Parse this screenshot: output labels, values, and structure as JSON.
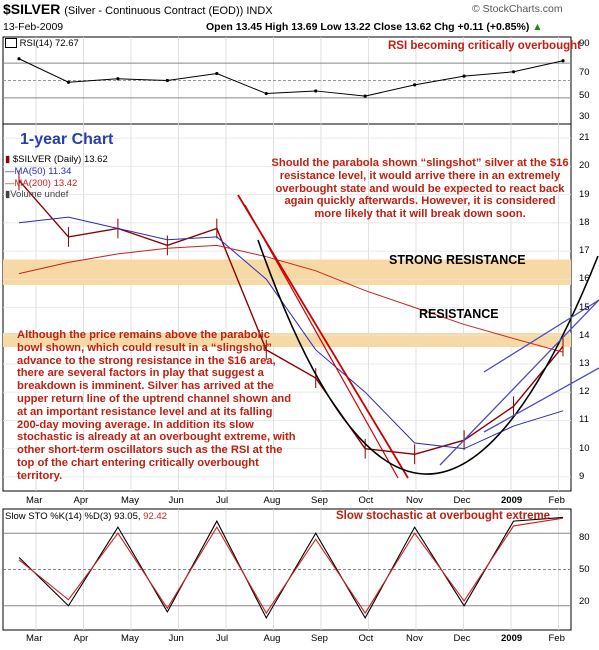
{
  "header": {
    "symbol": "$SILVER",
    "description": "(Silver - Continuous Contract (EOD)) INDX",
    "watermark": "© StockCharts.com",
    "date": "13-Feb-2009",
    "ohlc": "Open 13.45  High 13.69  Low 13.22  Close 13.62  Chg +0.11 (+0.85%)",
    "change_arrow": "▲"
  },
  "rsi_panel": {
    "label": "RSI(14) 72.67",
    "annotation": "RSI becoming critically overbought",
    "yticks": [
      "70",
      "50",
      "30"
    ],
    "top_tick": "90"
  },
  "price_panel": {
    "title_badge": "1-year Chart",
    "legend": {
      "main": "$SILVER (Daily) 13.62",
      "ma50": "MA(50) 11.34",
      "ma200": "MA(200) 13.42",
      "volume": "Volume undef"
    },
    "yticks": [
      "21",
      "20",
      "19",
      "18",
      "17",
      "16",
      "15",
      "14",
      "13",
      "12",
      "11",
      "10",
      "9"
    ],
    "xticks": [
      "Mar",
      "Apr",
      "May",
      "Jun",
      "Jul",
      "Aug",
      "Sep",
      "Oct",
      "Nov",
      "Dec",
      "2009",
      "Feb"
    ],
    "strong_resistance_label": "STRONG RESISTANCE",
    "resistance_label": "RESISTANCE",
    "annotation_top": "Should the parabola shown “slingshot” silver at the $16 resistance level, it would arrive there in an extremely overbought state and would be expected to react back again quickly afterwards. However, it is considered more likely that it will break down soon.",
    "annotation_left": "Although the price remains above the parabolic bowl shown, which could result in a “slingshot” advance to the strong resistance in the $16 area, there are several factors in play that suggest a breakdown is imminent. Silver has arrived at the upper return line of the uptrend channel shown and at an important resistance level and at its falling 200-day moving average. In addition its slow stochastic is already at an overbought extreme, with other short-term oscillators such as the RSI at the top of the chart entering critically overbought territory."
  },
  "sto_panel": {
    "label": "Slow STO %K(14) %D(3) 93.05,",
    "label_d": "92.42",
    "annotation": "Slow stochastic at overbought extreme",
    "yticks": [
      "80",
      "50",
      "20"
    ]
  },
  "colors": {
    "price_bars": "#8b0000",
    "ma50": "#2b2bb0",
    "ma200": "#cc2020",
    "resistance_band": "#f7d9a6",
    "annotation_red": "#c02010",
    "downtrend_line": "#cc0000",
    "channel": "#4a4ac8",
    "parabola": "#000000"
  },
  "chart_data": [
    {
      "type": "line",
      "title": "RSI(14) 72.67",
      "ylim": [
        0,
        100
      ],
      "x": [
        "Mar",
        "Apr",
        "May",
        "Jun",
        "Jul",
        "Aug",
        "Sep",
        "Oct",
        "Nov",
        "Dec",
        "2009",
        "Feb"
      ],
      "series": [
        {
          "name": "RSI(14)",
          "values": [
            75,
            48,
            52,
            50,
            58,
            35,
            38,
            32,
            45,
            55,
            60,
            72.67
          ]
        }
      ]
    },
    {
      "type": "line",
      "title": "$SILVER (Daily) 13.62",
      "ylim": [
        8.5,
        21.5
      ],
      "x": [
        "Mar",
        "Apr",
        "May",
        "Jun",
        "Jul",
        "Aug",
        "Sep",
        "Oct",
        "Nov",
        "Dec",
        "2009",
        "Feb"
      ],
      "series": [
        {
          "name": "$SILVER",
          "values": [
            19.5,
            17.5,
            17.8,
            17.2,
            17.8,
            13.5,
            12.5,
            10.0,
            9.8,
            10.3,
            11.5,
            13.62
          ]
        },
        {
          "name": "MA(50)",
          "values": [
            18.0,
            18.2,
            17.8,
            17.4,
            17.5,
            16.0,
            13.5,
            12.0,
            10.2,
            10.0,
            10.8,
            11.34
          ]
        },
        {
          "name": "MA(200)",
          "values": [
            16.2,
            16.6,
            16.9,
            17.1,
            17.2,
            16.8,
            16.3,
            15.6,
            15.0,
            14.4,
            13.9,
            13.42
          ]
        }
      ],
      "bands": [
        {
          "label": "STRONG RESISTANCE",
          "y": [
            15.8,
            16.7
          ]
        },
        {
          "label": "RESISTANCE",
          "y": [
            13.6,
            14.1
          ]
        }
      ]
    },
    {
      "type": "line",
      "title": "Slow STO %K(14) %D(3) 93.05, 92.42",
      "ylim": [
        0,
        100
      ],
      "x": [
        "Mar",
        "Apr",
        "May",
        "Jun",
        "Jul",
        "Aug",
        "Sep",
        "Oct",
        "Nov",
        "Dec",
        "2009",
        "Feb"
      ],
      "series": [
        {
          "name": "%K(14)",
          "values": [
            60,
            20,
            85,
            15,
            90,
            10,
            80,
            10,
            85,
            20,
            90,
            93.05
          ]
        },
        {
          "name": "%D(3)",
          "values": [
            58,
            25,
            80,
            18,
            85,
            14,
            75,
            14,
            80,
            24,
            86,
            92.42
          ]
        }
      ]
    }
  ]
}
